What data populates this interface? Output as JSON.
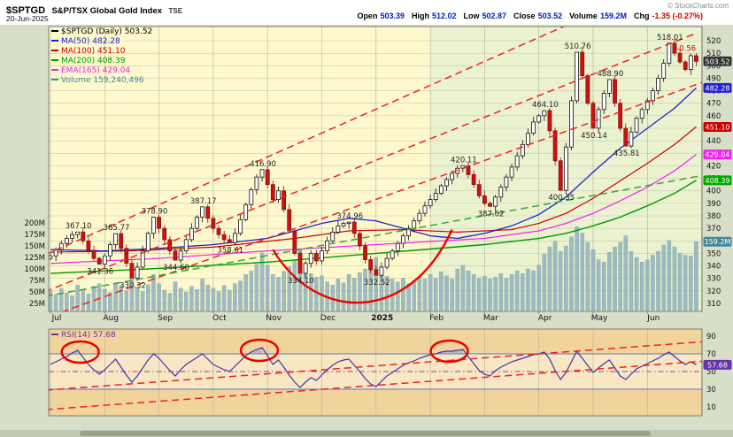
{
  "header": {
    "symbol": "$SPTGD",
    "name": "S&P/TSX Global Gold Index",
    "exchange": "TSE",
    "date": "20-Jun-2025",
    "copyright": "© StockCharts.com",
    "quote": [
      {
        "label": "Open",
        "value": "503.39"
      },
      {
        "label": "High",
        "value": "512.02"
      },
      {
        "label": "Low",
        "value": "502.87"
      },
      {
        "label": "Close",
        "value": "503.52"
      },
      {
        "label": "Volume",
        "value": "159.2M"
      },
      {
        "label": "Chg",
        "value": "-1.35 (-0.27%)",
        "color": "#cc0000"
      }
    ]
  },
  "legend": [
    {
      "id": "symbol",
      "text": "$SPTGD (Daily) 503.52",
      "color": "#000000"
    },
    {
      "id": "ma50",
      "text": "MA(50) 482.28",
      "color": "#2222cc"
    },
    {
      "id": "ma100",
      "text": "MA(100) 451.10",
      "color": "#cc0000"
    },
    {
      "id": "ma200",
      "text": "MA(200) 408.39",
      "color": "#009900"
    },
    {
      "id": "ema165",
      "text": "EMA(165) 429.04",
      "color": "#ee22ee"
    },
    {
      "id": "volume",
      "text": "Volume 159,240,496",
      "color": "#44889a"
    }
  ],
  "rsi_legend": {
    "text": "RSI(14) 57.68",
    "color": "#6633aa"
  },
  "value_boxes": [
    {
      "text": "503.52",
      "price": 503.52,
      "bg": "#333333"
    },
    {
      "text": "482.28",
      "price": 482.28,
      "bg": "#2222cc"
    },
    {
      "text": "451.10",
      "price": 451.1,
      "bg": "#cc0000"
    },
    {
      "text": "429.04",
      "price": 429.04,
      "bg": "#ee22ee"
    },
    {
      "text": "408.39",
      "price": 408.39,
      "bg": "#00aa00"
    },
    {
      "text": "159.2M",
      "vol": 159.2,
      "bg": "#44889a"
    }
  ],
  "rsi_box": {
    "text": "57.68",
    "value": 57.68,
    "bg": "#6633aa"
  },
  "chart_data": {
    "type": "candlestick",
    "title": "$SPTGD S&P/TSX Global Gold Index TSE Daily",
    "months": [
      "Jul",
      "Aug",
      "Sep",
      "Oct",
      "Nov",
      "Dec",
      "2025",
      "Feb",
      "Mar",
      "Apr",
      "May",
      "Jun"
    ],
    "price_ticks": [
      310,
      320,
      330,
      340,
      350,
      360,
      370,
      380,
      390,
      400,
      410,
      420,
      430,
      440,
      450,
      460,
      470,
      480,
      490,
      500,
      510,
      520
    ],
    "volume_ticks": [
      25,
      50,
      75,
      100,
      125,
      150,
      175,
      200
    ],
    "rsi_ticks": [
      10,
      30,
      50,
      70,
      90
    ],
    "ylim": [
      305,
      525
    ],
    "closes": [
      348,
      353,
      358,
      362,
      365,
      367.1,
      360,
      352,
      346,
      341.4,
      348,
      357,
      365.8,
      354,
      342,
      330.3,
      339,
      352,
      366,
      378.9,
      370,
      361,
      352,
      344.6,
      352,
      361,
      370,
      379,
      387.2,
      378,
      370,
      365,
      361,
      358.6,
      366,
      377,
      389,
      401,
      411,
      416.9,
      405,
      393,
      400,
      385,
      368,
      350,
      334.1,
      342,
      350,
      344,
      352,
      360,
      367,
      372,
      374,
      375,
      366,
      356,
      345,
      337,
      332.5,
      339,
      346,
      352,
      358,
      364,
      370,
      376,
      382,
      388,
      393,
      398,
      404,
      409,
      414,
      418,
      420.1,
      413,
      405,
      396,
      390,
      387.6,
      395,
      403,
      411,
      419,
      428,
      437,
      446,
      455,
      460,
      464.1,
      448,
      424,
      400.4,
      435,
      472,
      510.8,
      492,
      470,
      450.1,
      465,
      478,
      488.9,
      470,
      450,
      435.8,
      447,
      458,
      465,
      472,
      480,
      490,
      502,
      518,
      510,
      503,
      497,
      508,
      503.5
    ],
    "volumes": [
      52,
      45,
      58,
      48,
      42,
      65,
      55,
      46,
      62,
      68,
      56,
      49,
      70,
      64,
      53,
      82,
      60,
      51,
      66,
      88,
      68,
      54,
      47,
      72,
      58,
      50,
      62,
      55,
      78,
      65,
      58,
      51,
      64,
      54,
      68,
      74,
      88,
      96,
      110,
      135,
      108,
      88,
      82,
      95,
      105,
      118,
      142,
      112,
      90,
      82,
      85,
      72,
      65,
      78,
      70,
      88,
      80,
      92,
      100,
      112,
      125,
      95,
      84,
      78,
      72,
      80,
      68,
      75,
      82,
      78,
      88,
      80,
      94,
      85,
      78,
      100,
      108,
      96,
      88,
      80,
      84,
      78,
      82,
      90,
      80,
      88,
      96,
      90,
      100,
      96,
      108,
      132,
      148,
      160,
      138,
      150,
      170,
      192,
      178,
      158,
      142,
      120,
      115,
      136,
      148,
      158,
      172,
      138,
      125,
      115,
      120,
      130,
      138,
      152,
      162,
      148,
      134,
      130,
      128,
      159.2
    ],
    "rsi": [
      58,
      61,
      64,
      67,
      71,
      74,
      66,
      58,
      52,
      47,
      52,
      58,
      64,
      55,
      46,
      38,
      45,
      54,
      63,
      70,
      65,
      58,
      51,
      45,
      52,
      58,
      62,
      66,
      70,
      64,
      58,
      55,
      52,
      50,
      56,
      62,
      68,
      72,
      75,
      77,
      68,
      58,
      63,
      55,
      46,
      38,
      32,
      38,
      43,
      40,
      46,
      52,
      57,
      61,
      63,
      64,
      57,
      50,
      42,
      36,
      33,
      39,
      45,
      49,
      53,
      57,
      60,
      62,
      65,
      67,
      69,
      70,
      72,
      73,
      73,
      74,
      75,
      67,
      59,
      51,
      47,
      45,
      51,
      55,
      58,
      61,
      63,
      65,
      67,
      69,
      70,
      72,
      64,
      51,
      41,
      49,
      61,
      73,
      65,
      57,
      49,
      54,
      59,
      63,
      54,
      45,
      41,
      47,
      53,
      56,
      59,
      62,
      65,
      69,
      72,
      67,
      62,
      58,
      61,
      57.68
    ],
    "ma50": [
      [
        0,
        353
      ],
      [
        10,
        352
      ],
      [
        20,
        354
      ],
      [
        30,
        357
      ],
      [
        40,
        362
      ],
      [
        50,
        374
      ],
      [
        55,
        378
      ],
      [
        60,
        376
      ],
      [
        65,
        370
      ],
      [
        70,
        364
      ],
      [
        75,
        362
      ],
      [
        80,
        366
      ],
      [
        85,
        372
      ],
      [
        90,
        381
      ],
      [
        95,
        395
      ],
      [
        100,
        415
      ],
      [
        105,
        434
      ],
      [
        110,
        450
      ],
      [
        115,
        466
      ],
      [
        119,
        482.28
      ]
    ],
    "ma100": [
      [
        0,
        351
      ],
      [
        15,
        352
      ],
      [
        30,
        355
      ],
      [
        45,
        362
      ],
      [
        55,
        368
      ],
      [
        65,
        369
      ],
      [
        75,
        367
      ],
      [
        85,
        369
      ],
      [
        90,
        374
      ],
      [
        95,
        382
      ],
      [
        100,
        394
      ],
      [
        105,
        408
      ],
      [
        110,
        422
      ],
      [
        115,
        437
      ],
      [
        119,
        451.1
      ]
    ],
    "ma200": [
      [
        0,
        334
      ],
      [
        20,
        338
      ],
      [
        40,
        343
      ],
      [
        60,
        350
      ],
      [
        80,
        357
      ],
      [
        90,
        362
      ],
      [
        95,
        366
      ],
      [
        100,
        372
      ],
      [
        105,
        379
      ],
      [
        110,
        388
      ],
      [
        115,
        398
      ],
      [
        119,
        408.39
      ]
    ],
    "ema165": [
      [
        0,
        342
      ],
      [
        20,
        346
      ],
      [
        40,
        352
      ],
      [
        60,
        357
      ],
      [
        80,
        362
      ],
      [
        90,
        368
      ],
      [
        95,
        374
      ],
      [
        100,
        382
      ],
      [
        105,
        392
      ],
      [
        110,
        403
      ],
      [
        115,
        416
      ],
      [
        119,
        429.04
      ]
    ],
    "annotations": [
      {
        "i": 5,
        "p": 367.1,
        "t": "367.10",
        "pos": "h"
      },
      {
        "i": 9,
        "p": 341.4,
        "t": "341.36",
        "pos": "l"
      },
      {
        "i": 12,
        "p": 365.8,
        "t": "365.77",
        "pos": "h"
      },
      {
        "i": 15,
        "p": 330.3,
        "t": "330.32",
        "pos": "l"
      },
      {
        "i": 19,
        "p": 378.9,
        "t": "378.90",
        "pos": "h"
      },
      {
        "i": 23,
        "p": 344.6,
        "t": "344.60",
        "pos": "l"
      },
      {
        "i": 28,
        "p": 387.2,
        "t": "387.17",
        "pos": "h"
      },
      {
        "i": 33,
        "p": 358.6,
        "t": "358.61",
        "pos": "l"
      },
      {
        "i": 39,
        "p": 416.9,
        "t": "416.90",
        "pos": "h"
      },
      {
        "i": 46,
        "p": 334.1,
        "t": "334.10",
        "pos": "l"
      },
      {
        "i": 55,
        "p": 375.0,
        "t": "374.96",
        "pos": "h"
      },
      {
        "i": 60,
        "p": 332.5,
        "t": "332.52",
        "pos": "l"
      },
      {
        "i": 76,
        "p": 420.1,
        "t": "420.11",
        "pos": "h"
      },
      {
        "i": 81,
        "p": 387.6,
        "t": "387.62",
        "pos": "l"
      },
      {
        "i": 91,
        "p": 464.1,
        "t": "464.10",
        "pos": "h"
      },
      {
        "i": 94,
        "p": 400.4,
        "t": "400.35",
        "pos": "l"
      },
      {
        "i": 97,
        "p": 510.8,
        "t": "510.76",
        "pos": "h"
      },
      {
        "i": 100,
        "p": 450.1,
        "t": "450.14",
        "pos": "l"
      },
      {
        "i": 103,
        "p": 488.9,
        "t": "488.90",
        "pos": "h"
      },
      {
        "i": 106,
        "p": 435.8,
        "t": "435.81",
        "pos": "l"
      },
      {
        "i": 114,
        "p": 518.0,
        "t": "518.01",
        "pos": "h"
      }
    ],
    "extra_labels": [
      {
        "i": 117,
        "p": 512,
        "t": "-0.56",
        "color": "#cc0000"
      }
    ],
    "trendlines": [
      {
        "i1": -3,
        "p1": 345,
        "i2": 96,
        "p2": 534,
        "c": "red"
      },
      {
        "i1": -3,
        "p1": 316,
        "i2": 119,
        "p2": 526,
        "c": "red"
      },
      {
        "i1": 2,
        "p1": 303,
        "i2": 121,
        "p2": 488,
        "c": "red"
      },
      {
        "i1": -3,
        "p1": 314,
        "i2": 121,
        "p2": 413,
        "c": "green"
      }
    ],
    "arc": {
      "i1": 41,
      "p1": 353,
      "ci1": 49,
      "cp1": 295,
      "ci2": 66,
      "cp2": 293,
      "i2": 74,
      "p2": 369
    },
    "rsi_lines": [
      {
        "i1": -3,
        "v1": 28,
        "i2": 121,
        "v2": 84
      },
      {
        "i1": -3,
        "v1": 6,
        "i2": 121,
        "v2": 62
      }
    ],
    "rsi_circles": [
      {
        "i": 5.5,
        "v": 72
      },
      {
        "i": 38.5,
        "v": 74
      },
      {
        "i": 73.5,
        "v": 73
      }
    ],
    "colors": {
      "band_yellow": "#fdf9cd",
      "band_green": "#ebf2cf",
      "grid": "#c9c9b4",
      "vgrid": "#b3b39c",
      "border": "#7d7d6d",
      "volume": "#8fb2c0",
      "volume_stroke": "#5f8a99",
      "up": "#ffffff",
      "up_stroke": "#111111",
      "down": "#cc1111",
      "down_stroke": "#881111",
      "ma50": "#2222cc",
      "ma100": "#cc0000",
      "ma200": "#009900",
      "ema165": "#ee22ee",
      "rsi": "#4433aa",
      "rsi_band_line": "#5577cc",
      "rsi_mid_line": "#8844aa",
      "rsi_bg": "#f8e7c2",
      "rsi_zone": "#f1d49c",
      "rsi_fill": "rgba(120,150,230,0.45)",
      "trend_red": "#ee2222",
      "trend_green": "#33aa33",
      "circle": "#ee0000",
      "annotation": "#222222"
    }
  },
  "scrollbar": {
    "present": true
  }
}
